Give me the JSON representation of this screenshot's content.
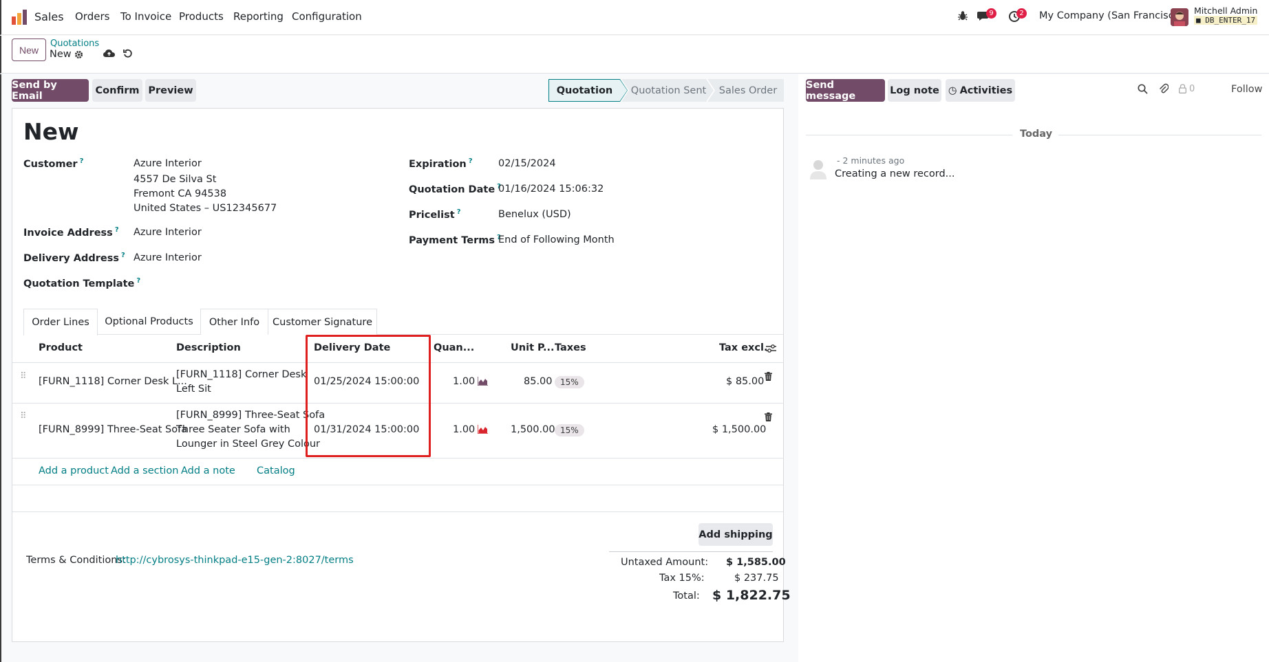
{
  "navbar": {
    "app_name": "Sales",
    "menu": [
      "Orders",
      "To Invoice",
      "Products",
      "Reporting",
      "Configuration"
    ],
    "messages_count": "9",
    "activities_count": "2",
    "company": "My Company (San Francisco)",
    "user_name": "Mitchell Admin",
    "db_name": "DB_ENTER_17"
  },
  "control": {
    "new_button": "New",
    "breadcrumb_parent": "Quotations",
    "breadcrumb_current": "New"
  },
  "actions": {
    "send_by_email": "Send by Email",
    "confirm": "Confirm",
    "preview": "Preview"
  },
  "statusbar": {
    "stages": [
      "Quotation",
      "Quotation Sent",
      "Sales Order"
    ],
    "active": "Quotation"
  },
  "form": {
    "title": "New",
    "customer_label": "Customer",
    "customer_name": "Azure Interior",
    "customer_addr1": "4557 De Silva St",
    "customer_addr2": "Fremont CA 94538",
    "customer_addr3": "United States – US12345677",
    "invoice_address_label": "Invoice Address",
    "invoice_address": "Azure Interior",
    "delivery_address_label": "Delivery Address",
    "delivery_address": "Azure Interior",
    "quotation_template_label": "Quotation Template",
    "expiration_label": "Expiration",
    "expiration": "02/15/2024",
    "quotation_date_label": "Quotation Date",
    "quotation_date": "01/16/2024 15:06:32",
    "pricelist_label": "Pricelist",
    "pricelist": "Benelux (USD)",
    "payment_terms_label": "Payment Terms",
    "payment_terms": "End of Following Month",
    "help_mark": "?"
  },
  "tabs": [
    "Order Lines",
    "Optional Products",
    "Other Info",
    "Customer Signature"
  ],
  "table": {
    "headers": {
      "product": "Product",
      "description": "Description",
      "delivery_date": "Delivery Date",
      "quantity": "Quan...",
      "unit_price": "Unit P...",
      "taxes": "Taxes",
      "tax_excl": "Tax excl."
    },
    "rows": [
      {
        "product": "[FURN_1118] Corner Desk L...",
        "desc1": "[FURN_1118] Corner Desk",
        "desc2": "Left Sit",
        "desc3": "",
        "delivery_date": "01/25/2024 15:00:00",
        "quantity": "1.00",
        "unit_price": "85.00",
        "tax": "15%",
        "subtotal": "$ 85.00"
      },
      {
        "product": "[FURN_8999] Three-Seat Sofa",
        "desc1": "[FURN_8999] Three-Seat Sofa",
        "desc2": "Three Seater Sofa with",
        "desc3": "Lounger in Steel Grey Colour",
        "delivery_date": "01/31/2024 15:00:00",
        "quantity": "1.00",
        "unit_price": "1,500.00",
        "tax": "15%",
        "subtotal": "$ 1,500.00"
      }
    ],
    "add_product": "Add a product",
    "add_section": "Add a section",
    "add_note": "Add a note",
    "catalog": "Catalog"
  },
  "footer": {
    "add_shipping": "Add shipping",
    "terms_label": "Terms & Conditions:",
    "terms_link": "http://cybrosys-thinkpad-e15-gen-2:8027/terms",
    "untaxed_label": "Untaxed Amount:",
    "untaxed_value": "$ 1,585.00",
    "tax_label": "Tax 15%:",
    "tax_value": "$ 237.75",
    "total_label": "Total:",
    "total_value": "$ 1,822.75"
  },
  "chatter": {
    "send_message": "Send message",
    "log_note": "Log note",
    "activities": "Activities",
    "followers_count": "0",
    "follow": "Follow",
    "date_separator": "Today",
    "message_time": "- 2 minutes ago",
    "message_body": "Creating a new record..."
  },
  "colors": {
    "brand": "#714b67",
    "link": "#017e84",
    "highlight_box": "#e01f1f"
  }
}
